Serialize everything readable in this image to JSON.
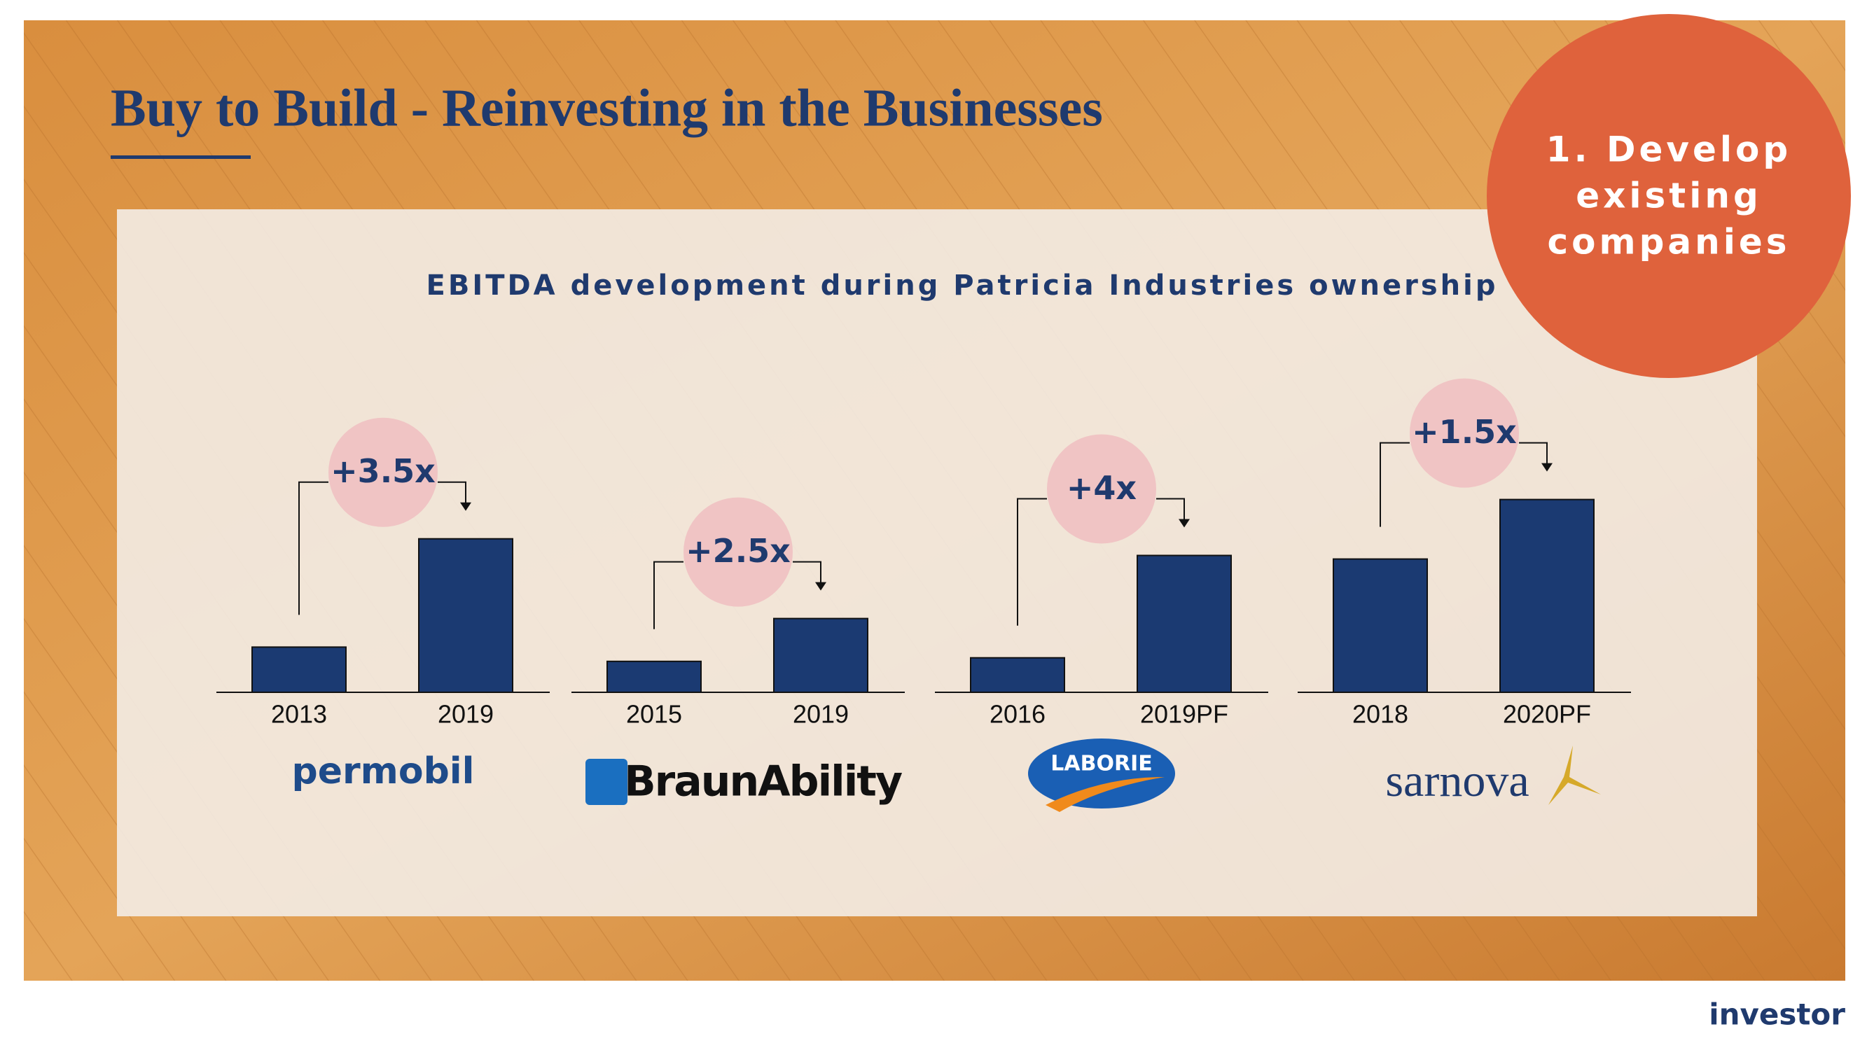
{
  "header": {
    "title": "Buy to Build - Reinvesting in the Businesses",
    "subtitle": "EBITDA development during Patricia Industries ownership",
    "callout": [
      "1. Develop",
      "existing",
      "companies"
    ]
  },
  "chart_data": [
    {
      "type": "bar",
      "categories": [
        "2013",
        "2019"
      ],
      "values": [
        38,
        129
      ],
      "annotation": "+3.5x",
      "logo": "permobil",
      "color": "#1b3a72",
      "ylim": [
        0,
        200
      ]
    },
    {
      "type": "bar",
      "categories": [
        "2015",
        "2019"
      ],
      "values": [
        26,
        62
      ],
      "annotation": "+2.5x",
      "logo": "BraunAbility",
      "color": "#1b3a72",
      "ylim": [
        0,
        200
      ]
    },
    {
      "type": "bar",
      "categories": [
        "2016",
        "2019PF"
      ],
      "values": [
        29,
        115
      ],
      "annotation": "+4x",
      "logo": "LABORIE",
      "color": "#1b3a72",
      "ylim": [
        0,
        200
      ]
    },
    {
      "type": "bar",
      "categories": [
        "2018",
        "2020PF"
      ],
      "values": [
        112,
        162
      ],
      "annotation": "+1.5x",
      "logo": "sarnova",
      "color": "#1b3a72",
      "ylim": [
        0,
        200
      ]
    }
  ],
  "footer": {
    "brand": "investor"
  }
}
